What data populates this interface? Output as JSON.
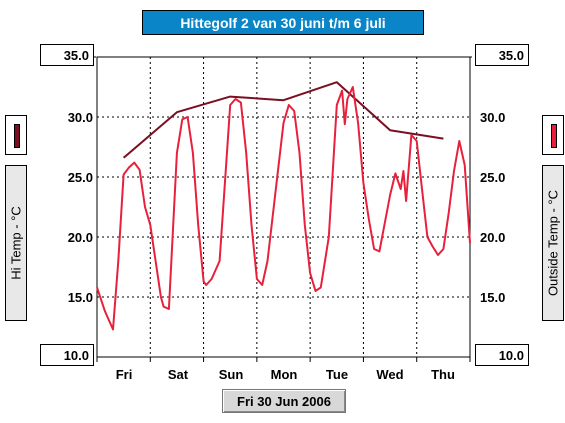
{
  "chart_data": {
    "type": "line",
    "title": "Hittegolf 2 van 30 juni t/m 6 juli",
    "categories": [
      "Fri",
      "Sat",
      "Sun",
      "Mon",
      "Tue",
      "Wed",
      "Thu"
    ],
    "ylim": [
      10,
      35
    ],
    "yticks": [
      "35.0",
      "30.0",
      "25.0",
      "20.0",
      "15.0",
      "10.0"
    ],
    "ylabel_left": "Hi Temp - °C",
    "ylabel_right": "Outside Temp - °C",
    "xlabel": "Fri 30 Jun 2006",
    "grid": true,
    "series": [
      {
        "color": "#7a0f22",
        "x": [
          0.5,
          1.5,
          2.5,
          3.5,
          4.5,
          5.5,
          6.5
        ],
        "values": [
          26.6,
          30.4,
          31.7,
          31.4,
          32.9,
          28.9,
          28.2
        ]
      },
      {
        "color": "#e8203c",
        "x": [
          0.0,
          0.15,
          0.3,
          0.4,
          0.5,
          0.6,
          0.7,
          0.8,
          0.9,
          1.0,
          1.1,
          1.2,
          1.25,
          1.35,
          1.5,
          1.6,
          1.7,
          1.8,
          1.9,
          2.0,
          2.05,
          2.15,
          2.3,
          2.5,
          2.6,
          2.7,
          2.8,
          2.9,
          3.0,
          3.1,
          3.2,
          3.5,
          3.6,
          3.7,
          3.8,
          3.9,
          4.0,
          4.1,
          4.2,
          4.35,
          4.5,
          4.6,
          4.65,
          4.7,
          4.8,
          4.9,
          5.0,
          5.1,
          5.2,
          5.3,
          5.5,
          5.6,
          5.7,
          5.75,
          5.8,
          5.9,
          6.0,
          6.1,
          6.2,
          6.3,
          6.4,
          6.5,
          6.6,
          6.7,
          6.8,
          6.9,
          7.0
        ],
        "values": [
          15.8,
          13.8,
          12.3,
          18.0,
          25.2,
          25.8,
          26.2,
          25.6,
          22.5,
          21.0,
          18.0,
          15.0,
          14.2,
          14.0,
          27.0,
          29.8,
          30.0,
          27.0,
          21.0,
          16.3,
          16.0,
          16.5,
          18.0,
          31.0,
          31.5,
          31.2,
          27.0,
          21.0,
          16.5,
          16.0,
          18.0,
          29.5,
          31.0,
          30.5,
          27.0,
          21.0,
          17.0,
          15.5,
          15.8,
          20.0,
          31.0,
          32.2,
          29.4,
          31.5,
          32.5,
          29.5,
          24.5,
          21.5,
          19.0,
          18.8,
          23.5,
          25.3,
          24.0,
          25.5,
          23.0,
          28.5,
          28.0,
          24.0,
          20.0,
          19.2,
          18.5,
          19.0,
          22.0,
          25.5,
          28.0,
          26.0,
          19.5
        ]
      }
    ]
  }
}
